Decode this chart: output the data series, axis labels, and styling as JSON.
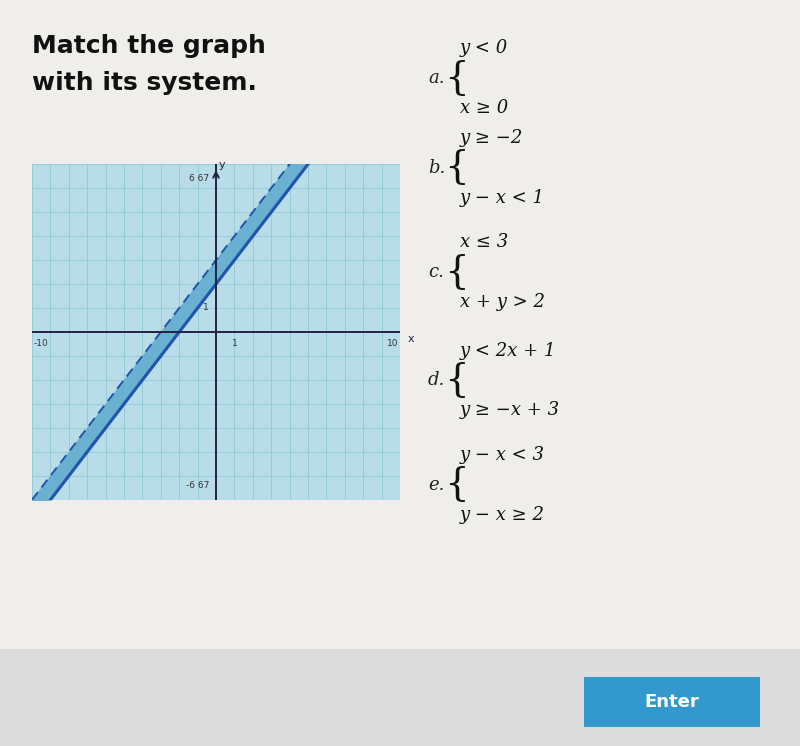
{
  "graph_xlim": [
    -10,
    10
  ],
  "graph_ylim": [
    -6.67,
    6.67
  ],
  "line1_intercept": 2,
  "line2_intercept": 3,
  "line_slope": 1,
  "bg_color": "#b8dde8",
  "band_color": "#6ab0d0",
  "line_color": "#2255aa",
  "axis_color": "#222244",
  "grid_color": "#90c8d8",
  "fig_bg": "#f0eeeb",
  "enter_btn_color": "#3399cc",
  "enter_btn_text": "Enter",
  "figsize": [
    8.0,
    7.46
  ],
  "dpi": 100,
  "title_line1": "Match the graph",
  "title_line2": "with its system.",
  "options": [
    {
      "label": "a.",
      "eq1": "y < 0",
      "eq2": "x ≥ 0"
    },
    {
      "label": "b.",
      "eq1": "y ≥ −2",
      "eq2": "y − x < 1"
    },
    {
      "label": "c.",
      "eq1": "x ≤ 3",
      "eq2": "x + y > 2"
    },
    {
      "label": "d.",
      "eq1": "y < 2x + 1",
      "eq2": "y ≥ −x + 3"
    },
    {
      "label": "e.",
      "eq1": "y − x < 3",
      "eq2": "y − x ≥ 2"
    }
  ]
}
